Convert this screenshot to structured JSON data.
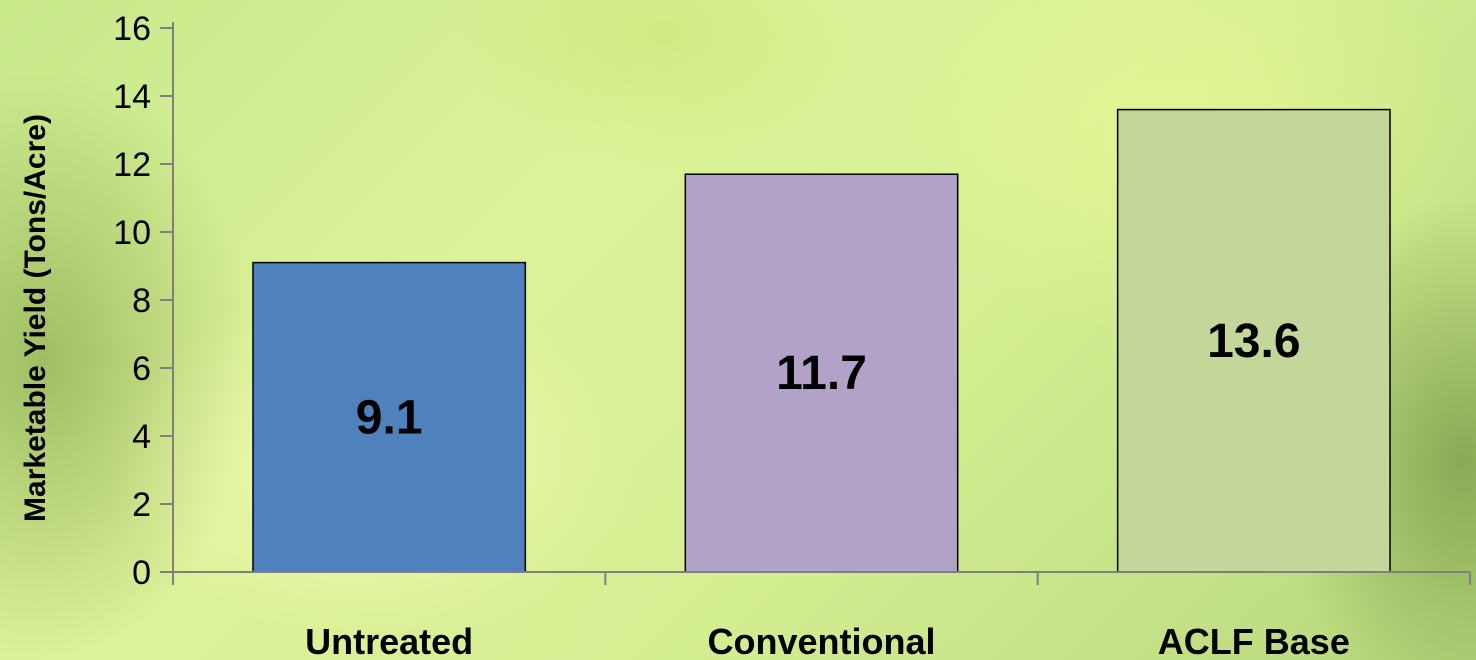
{
  "chart_data": {
    "type": "bar",
    "categories": [
      "Untreated",
      "Conventional",
      "ACLF Base"
    ],
    "values": [
      9.1,
      11.7,
      13.6
    ],
    "data_labels": [
      "9.1",
      "11.7",
      "13.6"
    ],
    "bar_colors": [
      "#4f81bd",
      "#b3a2c7",
      "#c4d79b"
    ],
    "title": "",
    "xlabel": "",
    "ylabel": "Marketable Yield (Tons/Acre)",
    "ylim": [
      0,
      16
    ],
    "yticks": [
      "0",
      "2",
      "4",
      "6",
      "8",
      "10",
      "12",
      "14",
      "16"
    ],
    "grid": false,
    "legend": "none"
  }
}
